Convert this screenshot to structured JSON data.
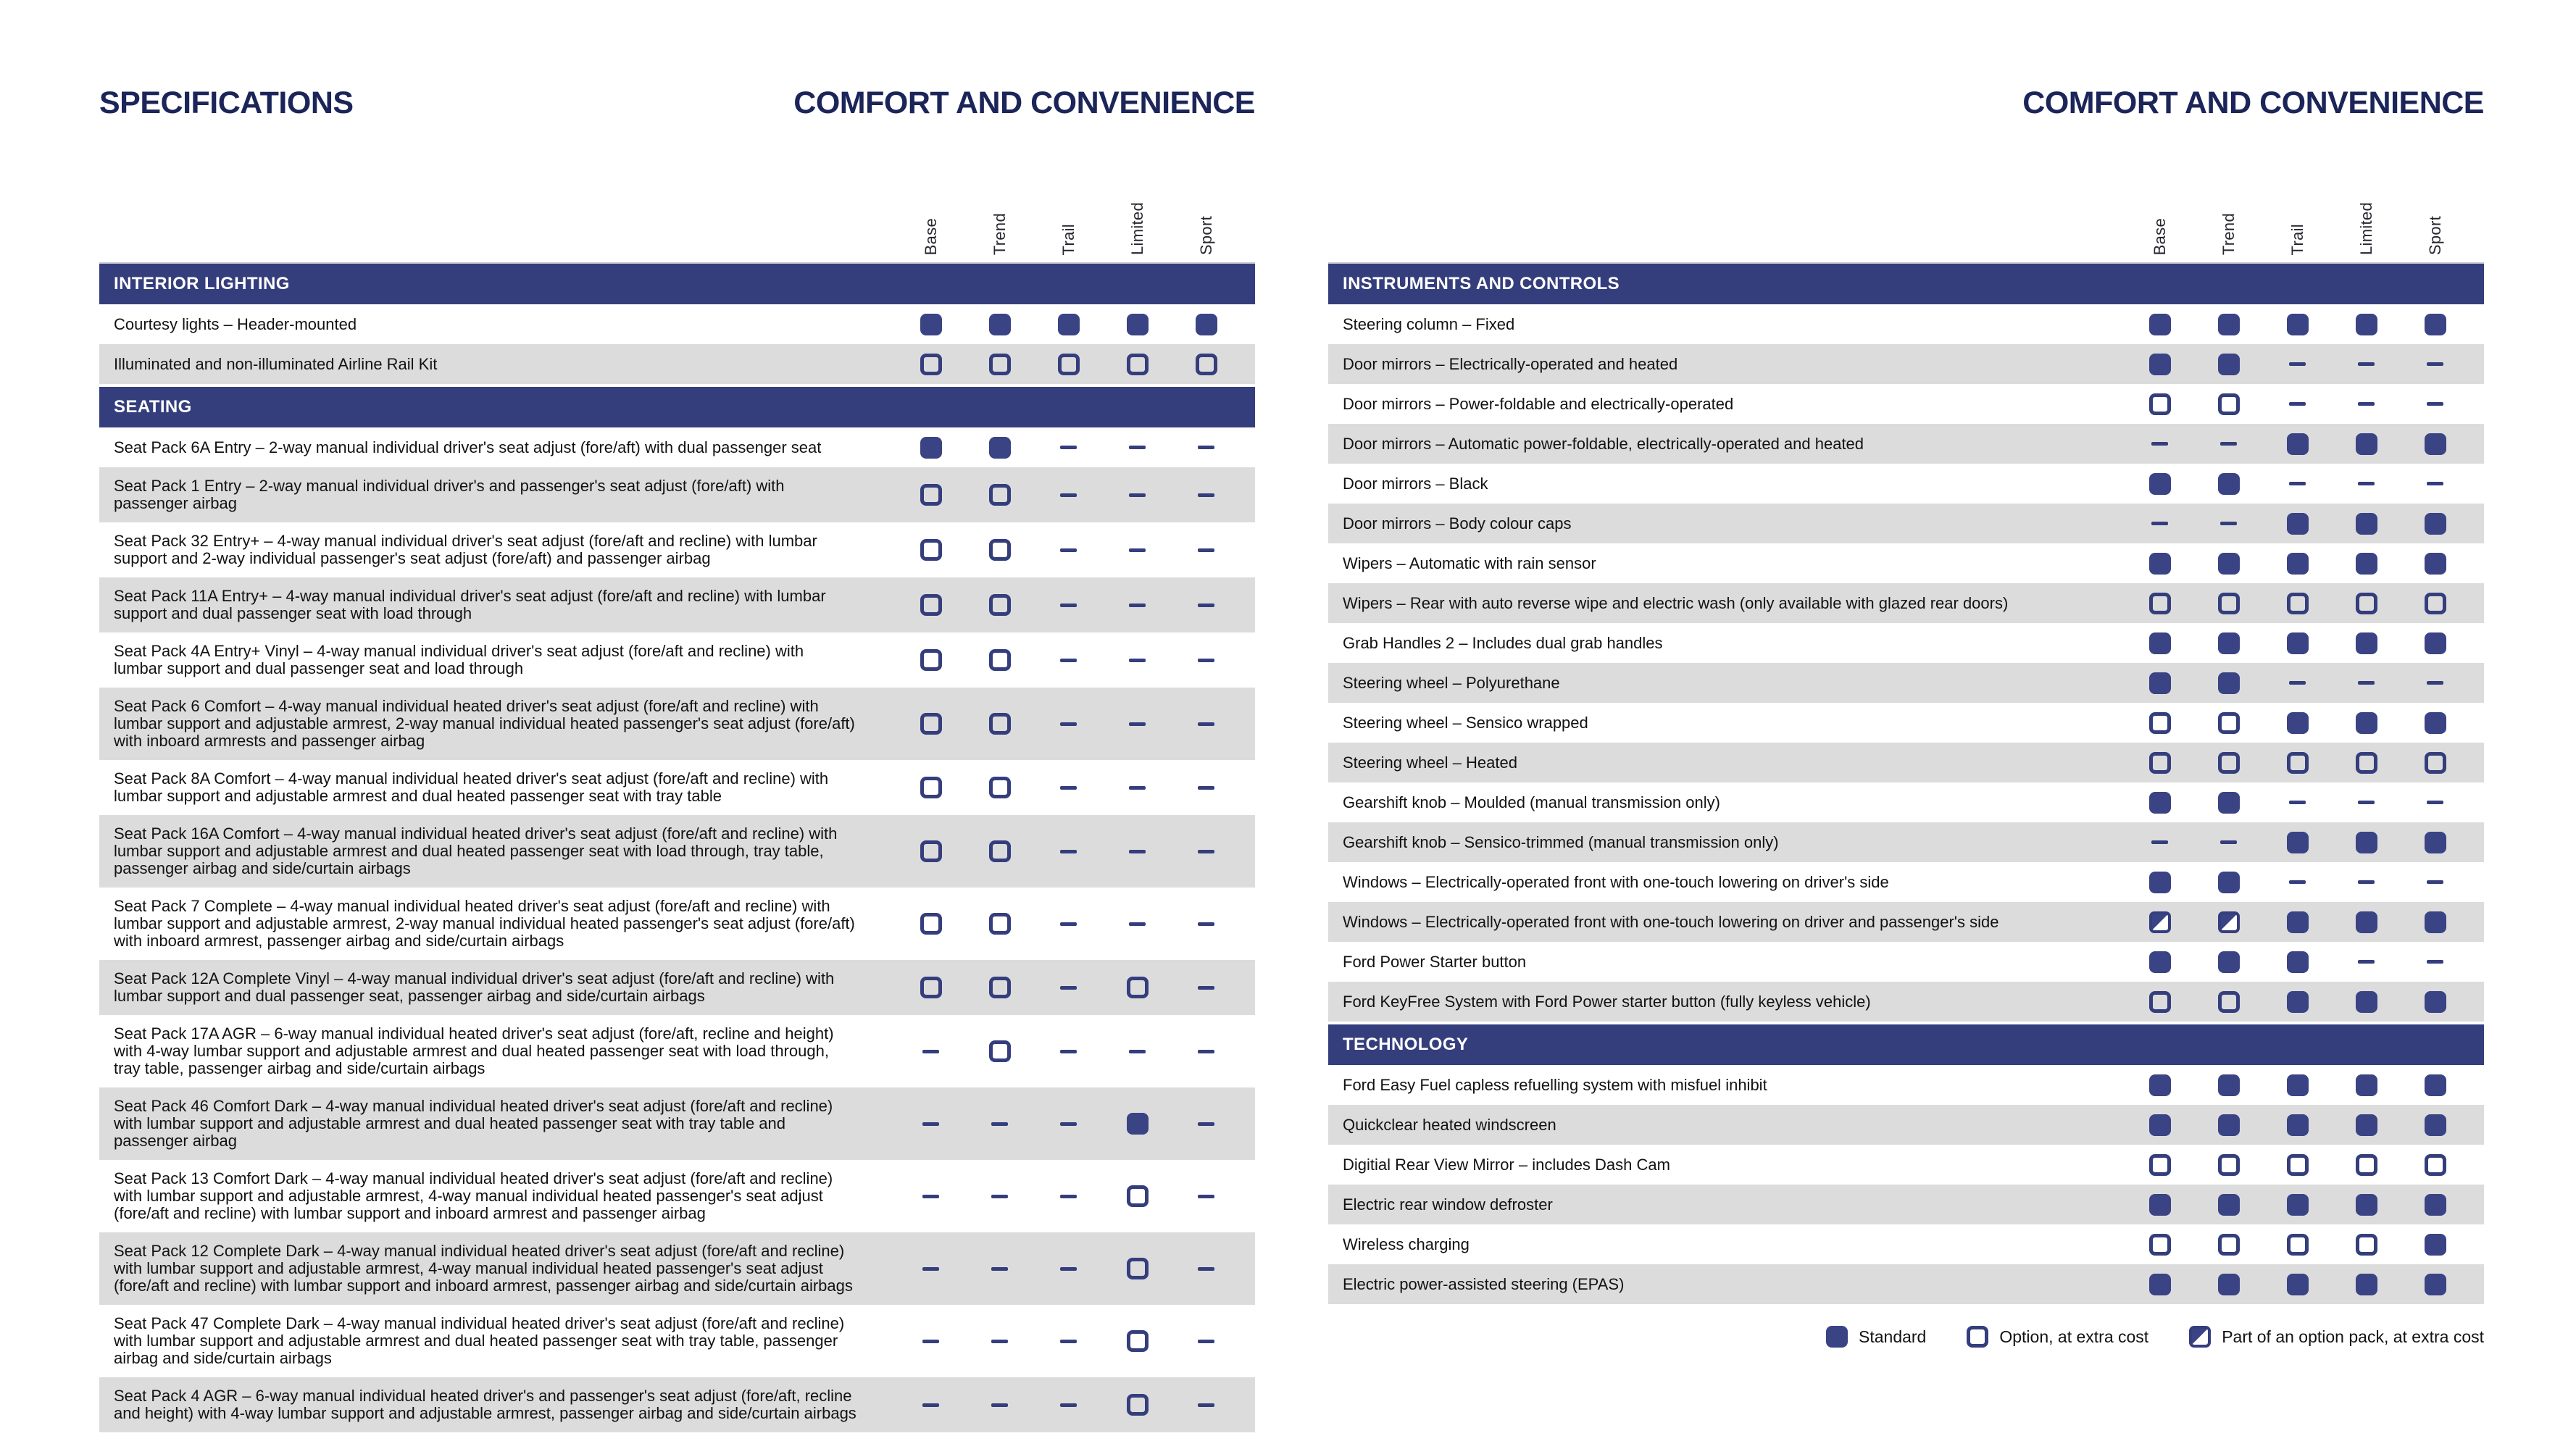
{
  "trim_columns": [
    "Base",
    "Trend",
    "Trail",
    "Limited",
    "Sport"
  ],
  "colors": {
    "section_bar_navy": "#353e7c",
    "mark_fill_navy": "#3a4384",
    "title_navy": "#1b2559",
    "row_alternate_gray": "#dcdcdc"
  },
  "left": {
    "eyebrow": "SPECIFICATIONS",
    "title": "COMFORT AND CONVENIENCE",
    "sections": [
      {
        "heading": "INTERIOR LIGHTING",
        "rows": [
          {
            "label": "Courtesy lights – Header-mounted",
            "marks": [
              "s",
              "s",
              "s",
              "s",
              "s"
            ]
          },
          {
            "label": "Illuminated and non-illuminated Airline Rail Kit",
            "marks": [
              "o",
              "o",
              "o",
              "o",
              "o"
            ]
          }
        ]
      },
      {
        "heading": "SEATING",
        "rows": [
          {
            "label": "Seat Pack 6A Entry – 2-way manual individual driver's seat adjust (fore/aft) with dual passenger seat",
            "marks": [
              "s",
              "s",
              "-",
              "-",
              "-"
            ]
          },
          {
            "label": "Seat Pack 1 Entry – 2-way manual individual driver's and passenger's seat adjust (fore/aft) with passenger airbag",
            "marks": [
              "o",
              "o",
              "-",
              "-",
              "-"
            ]
          },
          {
            "label": "Seat Pack 32 Entry+ – 4-way manual individual driver's seat adjust (fore/aft and recline) with lumbar support and 2-way individual passenger's seat adjust (fore/aft) and passenger airbag",
            "marks": [
              "o",
              "o",
              "-",
              "-",
              "-"
            ]
          },
          {
            "label": "Seat Pack 11A Entry+ – 4-way manual individual driver's seat adjust (fore/aft and recline) with lumbar support and dual passenger seat with load through",
            "marks": [
              "o",
              "o",
              "-",
              "-",
              "-"
            ]
          },
          {
            "label": "Seat Pack 4A Entry+ Vinyl – 4-way manual individual driver's seat adjust (fore/aft and recline) with lumbar support and dual passenger seat and load through",
            "marks": [
              "o",
              "o",
              "-",
              "-",
              "-"
            ]
          },
          {
            "label": "Seat Pack 6 Comfort – 4-way manual individual heated driver's seat adjust (fore/aft and recline) with lumbar support and adjustable armrest, 2-way manual individual heated passenger's seat adjust (fore/aft) with inboard armrests and passenger airbag",
            "marks": [
              "o",
              "o",
              "-",
              "-",
              "-"
            ]
          },
          {
            "label": "Seat Pack 8A Comfort – 4-way manual individual heated driver's seat adjust (fore/aft and recline) with lumbar support and adjustable armrest and dual heated passenger seat with tray table",
            "marks": [
              "o",
              "o",
              "-",
              "-",
              "-"
            ]
          },
          {
            "label": "Seat Pack 16A Comfort – 4-way manual individual heated driver's seat adjust (fore/aft and recline) with lumbar support and adjustable armrest and dual heated passenger seat with load through, tray table, passenger airbag and side/curtain airbags",
            "marks": [
              "o",
              "o",
              "-",
              "-",
              "-"
            ]
          },
          {
            "label": "Seat Pack 7 Complete – 4-way manual individual heated driver's seat adjust (fore/aft and recline) with lumbar support and adjustable armrest, 2-way manual individual heated passenger's seat adjust (fore/aft) with inboard armrest, passenger airbag and side/curtain airbags",
            "marks": [
              "o",
              "o",
              "-",
              "-",
              "-"
            ]
          },
          {
            "label": "Seat Pack 12A Complete Vinyl – 4-way manual individual driver's seat adjust (fore/aft and recline) with lumbar support and dual passenger seat, passenger airbag and side/curtain airbags",
            "marks": [
              "o",
              "o",
              "-",
              "o",
              "-"
            ]
          },
          {
            "label": "Seat Pack 17A AGR – 6-way manual individual heated driver's seat adjust (fore/aft, recline and height) with 4-way lumbar support and adjustable armrest and dual heated passenger seat with load through, tray table, passenger airbag and side/curtain airbags",
            "marks": [
              "-",
              "o",
              "-",
              "-",
              "-"
            ]
          },
          {
            "label": "Seat Pack 46 Comfort Dark – 4-way manual individual heated driver's seat adjust (fore/aft and recline) with lumbar support and adjustable armrest and dual heated passenger seat with tray table and passenger airbag",
            "marks": [
              "-",
              "-",
              "-",
              "s",
              "-"
            ]
          },
          {
            "label": "Seat Pack 13 Comfort Dark – 4-way manual individual heated driver's seat adjust (fore/aft and recline) with lumbar support and adjustable armrest, 4-way manual individual heated passenger's seat adjust (fore/aft and recline) with lumbar support and inboard armrest and passenger airbag",
            "marks": [
              "-",
              "-",
              "-",
              "o",
              "-"
            ]
          },
          {
            "label": "Seat Pack 12 Complete Dark – 4-way manual individual heated driver's seat adjust (fore/aft and recline) with lumbar support and adjustable armrest, 4-way manual individual heated passenger's seat adjust (fore/aft and recline) with lumbar support and inboard armrest, passenger airbag and side/curtain airbags",
            "marks": [
              "-",
              "-",
              "-",
              "o",
              "-"
            ]
          },
          {
            "label": "Seat Pack 47 Complete Dark – 4-way manual individual heated driver's seat adjust (fore/aft and recline) with lumbar support and adjustable armrest and dual heated passenger seat with tray table, passenger airbag and side/curtain airbags",
            "marks": [
              "-",
              "-",
              "-",
              "o",
              "-"
            ]
          },
          {
            "label": "Seat Pack 4 AGR – 6-way manual individual heated driver's and passenger's seat adjust (fore/aft, recline and height) with 4-way lumbar support and adjustable armrest, passenger airbag and side/curtain airbags",
            "marks": [
              "-",
              "-",
              "-",
              "o",
              "-"
            ]
          }
        ]
      }
    ]
  },
  "right": {
    "title": "COMFORT AND CONVENIENCE",
    "sections": [
      {
        "heading": "INSTRUMENTS AND CONTROLS",
        "rows": [
          {
            "label": "Steering column – Fixed",
            "marks": [
              "s",
              "s",
              "s",
              "s",
              "s"
            ]
          },
          {
            "label": "Door mirrors – Electrically-operated and heated",
            "marks": [
              "s",
              "s",
              "-",
              "-",
              "-"
            ]
          },
          {
            "label": "Door mirrors – Power-foldable and electrically-operated",
            "marks": [
              "o",
              "o",
              "-",
              "-",
              "-"
            ]
          },
          {
            "label": "Door mirrors – Automatic power-foldable, electrically-operated and heated",
            "marks": [
              "-",
              "-",
              "s",
              "s",
              "s"
            ]
          },
          {
            "label": "Door mirrors – Black",
            "marks": [
              "s",
              "s",
              "-",
              "-",
              "-"
            ]
          },
          {
            "label": "Door mirrors – Body colour caps",
            "marks": [
              "-",
              "-",
              "s",
              "s",
              "s"
            ]
          },
          {
            "label": "Wipers – Automatic with rain sensor",
            "marks": [
              "s",
              "s",
              "s",
              "s",
              "s"
            ]
          },
          {
            "label": "Wipers – Rear with auto reverse wipe and electric wash (only available with glazed rear doors)",
            "marks": [
              "o",
              "o",
              "o",
              "o",
              "o"
            ]
          },
          {
            "label": "Grab Handles 2 – Includes dual grab handles",
            "marks": [
              "s",
              "s",
              "s",
              "s",
              "s"
            ]
          },
          {
            "label": "Steering wheel – Polyurethane",
            "marks": [
              "s",
              "s",
              "-",
              "-",
              "-"
            ]
          },
          {
            "label": "Steering wheel – Sensico wrapped",
            "marks": [
              "o",
              "o",
              "s",
              "s",
              "s"
            ]
          },
          {
            "label": "Steering wheel – Heated",
            "marks": [
              "o",
              "o",
              "o",
              "o",
              "o"
            ]
          },
          {
            "label": "Gearshift knob – Moulded (manual transmission only)",
            "marks": [
              "s",
              "s",
              "-",
              "-",
              "-"
            ]
          },
          {
            "label": "Gearshift knob – Sensico-trimmed (manual transmission only)",
            "marks": [
              "-",
              "-",
              "s",
              "s",
              "s"
            ]
          },
          {
            "label": "Windows – Electrically-operated front with one-touch lowering on driver's side",
            "marks": [
              "s",
              "s",
              "-",
              "-",
              "-"
            ]
          },
          {
            "label": "Windows – Electrically-operated front with one-touch lowering on driver and passenger's side",
            "marks": [
              "p",
              "p",
              "s",
              "s",
              "s"
            ]
          },
          {
            "label": "Ford Power Starter button",
            "marks": [
              "s",
              "s",
              "s",
              "-",
              "-"
            ]
          },
          {
            "label": "Ford KeyFree System with Ford Power starter button (fully keyless vehicle)",
            "marks": [
              "o",
              "o",
              "s",
              "s",
              "s"
            ]
          }
        ]
      },
      {
        "heading": "TECHNOLOGY",
        "rows": [
          {
            "label": "Ford Easy Fuel capless refuelling system with misfuel inhibit",
            "marks": [
              "s",
              "s",
              "s",
              "s",
              "s"
            ]
          },
          {
            "label": "Quickclear heated windscreen",
            "marks": [
              "s",
              "s",
              "s",
              "s",
              "s"
            ]
          },
          {
            "label": "Digitial Rear View Mirror – includes Dash Cam",
            "marks": [
              "o",
              "o",
              "o",
              "o",
              "o"
            ]
          },
          {
            "label": "Electric rear window defroster",
            "marks": [
              "s",
              "s",
              "s",
              "s",
              "s"
            ]
          },
          {
            "label": "Wireless charging",
            "marks": [
              "o",
              "o",
              "o",
              "o",
              "s"
            ]
          },
          {
            "label": "Electric power-assisted steering (EPAS)",
            "marks": [
              "s",
              "s",
              "s",
              "s",
              "s"
            ]
          }
        ]
      }
    ]
  },
  "legend": [
    {
      "symbol": "standard",
      "label": "Standard"
    },
    {
      "symbol": "option",
      "label": "Option, at extra cost"
    },
    {
      "symbol": "option-pack",
      "label": "Part of an option pack, at extra cost"
    }
  ]
}
